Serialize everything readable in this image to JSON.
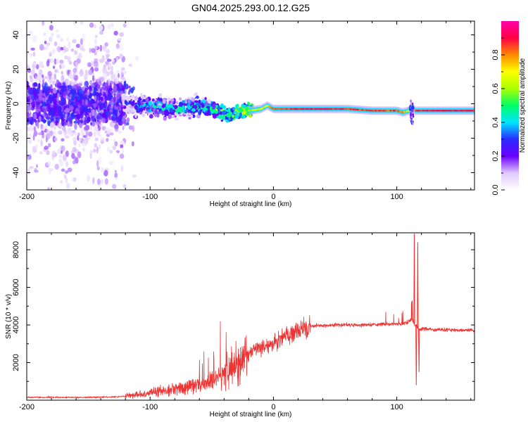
{
  "title": "GN04.2025.293.00.12.G25",
  "chart_data": [
    {
      "type": "heatmap",
      "name": "spectrogram",
      "xlabel": "Height of straight line (km)",
      "ylabel": "Frequency (Hz)",
      "xlim": [
        -200,
        163
      ],
      "ylim": [
        -50,
        48
      ],
      "xticks": [
        -200,
        -100,
        0,
        100
      ],
      "yticks": [
        -40,
        -20,
        0,
        20,
        40
      ],
      "colorbar": {
        "label": "Normalized spectral amplitude",
        "range": [
          0,
          1
        ],
        "ticks": [
          0.0,
          0.2,
          0.4,
          0.6,
          0.8
        ],
        "colors": [
          "#ffffff",
          "#e0c8ff",
          "#6a00ff",
          "#2a2aff",
          "#00e5ff",
          "#00ff66",
          "#aaff00",
          "#ffff00",
          "#ff8800",
          "#ff0044",
          "#ff00aa"
        ]
      },
      "ridge": {
        "x": [
          -120,
          -100,
          -80,
          -60,
          -45,
          -35,
          -30,
          -20,
          -10,
          -5,
          0,
          10,
          20,
          40,
          60,
          80,
          100,
          105,
          110,
          112,
          115,
          120,
          140,
          163
        ],
        "y": [
          0,
          -2,
          -3,
          -1,
          -4,
          -7,
          -5,
          -4,
          -3,
          -1,
          -3,
          -3,
          -3,
          -3,
          -3,
          -4,
          -4,
          -5,
          -4,
          -1,
          -4,
          -4,
          -4,
          -4
        ],
        "amplitude": [
          0.2,
          0.35,
          0.4,
          0.4,
          0.45,
          0.5,
          0.55,
          0.6,
          0.7,
          0.75,
          0.85,
          0.85,
          0.9,
          0.9,
          0.88,
          0.85,
          0.85,
          0.8,
          0.6,
          0.4,
          0.9,
          0.9,
          0.9,
          0.9
        ]
      }
    },
    {
      "type": "line",
      "name": "snr",
      "xlabel": "Height of straight line (km)",
      "ylabel": "SNR (10 * v/v)",
      "xlim": [
        -200,
        163
      ],
      "ylim": [
        0,
        8900
      ],
      "xticks": [
        -200,
        -100,
        0,
        100
      ],
      "yticks": [
        2000,
        4000,
        6000,
        8000
      ],
      "color": "#ee3333",
      "trend": {
        "x": [
          -200,
          -150,
          -125,
          -110,
          -90,
          -70,
          -50,
          -40,
          -30,
          -20,
          -10,
          0,
          10,
          20,
          30,
          50,
          70,
          90,
          100,
          108,
          112,
          115,
          118,
          120,
          130,
          163
        ],
        "y": [
          150,
          150,
          180,
          300,
          500,
          700,
          1000,
          1400,
          1900,
          2500,
          2800,
          3000,
          3400,
          3700,
          3950,
          4000,
          4000,
          4050,
          4050,
          4100,
          4300,
          4000,
          3800,
          3800,
          3750,
          3700
        ]
      },
      "spikes": [
        {
          "x": 114.2,
          "y": 8850
        },
        {
          "x": 115.8,
          "y": 800
        },
        {
          "x": 117.0,
          "y": 8400
        },
        {
          "x": 118.0,
          "y": 1500
        },
        {
          "x": 112.5,
          "y": 5300
        }
      ]
    }
  ]
}
